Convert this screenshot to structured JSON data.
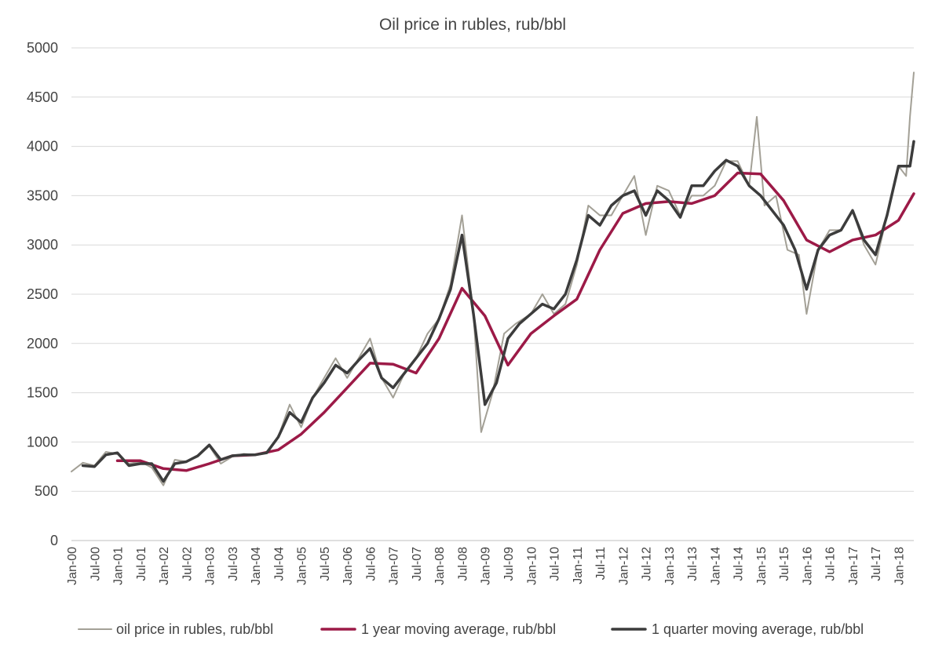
{
  "chart_data": {
    "type": "line",
    "title": "Oil price in rubles, rub/bbl",
    "xlabel": "",
    "ylabel": "",
    "ylim": [
      0,
      5000
    ],
    "yticks": [
      0,
      500,
      1000,
      1500,
      2000,
      2500,
      3000,
      3500,
      4000,
      4500,
      5000
    ],
    "x_tick_labels": [
      "Jan-00",
      "Jul-00",
      "Jan-01",
      "Jul-01",
      "Jan-02",
      "Jul-02",
      "Jan-03",
      "Jul-03",
      "Jan-04",
      "Jul-04",
      "Jan-05",
      "Jul-05",
      "Jan-06",
      "Jul-06",
      "Jan-07",
      "Jul-07",
      "Jan-08",
      "Jul-08",
      "Jan-09",
      "Jul-09",
      "Jan-10",
      "Jul-10",
      "Jan-11",
      "Jul-11",
      "Jan-12",
      "Jul-12",
      "Jan-13",
      "Jul-13",
      "Jan-14",
      "Jul-14",
      "Jan-15",
      "Jul-15",
      "Jan-16",
      "Jul-16",
      "Jan-17",
      "Jul-17",
      "Jan-18"
    ],
    "x_range": [
      "2000-01",
      "2018-05"
    ],
    "grid": "horizontal",
    "legend_position": "bottom",
    "series": [
      {
        "name": "oil price in rubles, rub/bbl",
        "color": "#a3a096",
        "points": [
          [
            "2000-01",
            700
          ],
          [
            "2000-04",
            790
          ],
          [
            "2000-07",
            760
          ],
          [
            "2000-10",
            900
          ],
          [
            "2001-01",
            880
          ],
          [
            "2001-04",
            780
          ],
          [
            "2001-07",
            800
          ],
          [
            "2001-10",
            740
          ],
          [
            "2002-01",
            560
          ],
          [
            "2002-04",
            820
          ],
          [
            "2002-07",
            800
          ],
          [
            "2002-10",
            850
          ],
          [
            "2003-01",
            960
          ],
          [
            "2003-04",
            780
          ],
          [
            "2003-07",
            850
          ],
          [
            "2003-10",
            880
          ],
          [
            "2004-01",
            870
          ],
          [
            "2004-04",
            900
          ],
          [
            "2004-07",
            1050
          ],
          [
            "2004-10",
            1380
          ],
          [
            "2005-01",
            1150
          ],
          [
            "2005-04",
            1450
          ],
          [
            "2005-07",
            1650
          ],
          [
            "2005-10",
            1850
          ],
          [
            "2006-01",
            1650
          ],
          [
            "2006-04",
            1850
          ],
          [
            "2006-07",
            2050
          ],
          [
            "2006-10",
            1650
          ],
          [
            "2007-01",
            1450
          ],
          [
            "2007-04",
            1700
          ],
          [
            "2007-07",
            1850
          ],
          [
            "2007-10",
            2100
          ],
          [
            "2008-01",
            2250
          ],
          [
            "2008-04",
            2600
          ],
          [
            "2008-07",
            3300
          ],
          [
            "2008-10",
            2300
          ],
          [
            "2008-12",
            1100
          ],
          [
            "2009-03",
            1500
          ],
          [
            "2009-06",
            2100
          ],
          [
            "2009-09",
            2200
          ],
          [
            "2010-01",
            2300
          ],
          [
            "2010-04",
            2500
          ],
          [
            "2010-07",
            2300
          ],
          [
            "2010-10",
            2400
          ],
          [
            "2011-01",
            2800
          ],
          [
            "2011-04",
            3400
          ],
          [
            "2011-07",
            3300
          ],
          [
            "2011-10",
            3300
          ],
          [
            "2012-01",
            3500
          ],
          [
            "2012-04",
            3700
          ],
          [
            "2012-07",
            3100
          ],
          [
            "2012-10",
            3600
          ],
          [
            "2013-01",
            3550
          ],
          [
            "2013-04",
            3300
          ],
          [
            "2013-07",
            3500
          ],
          [
            "2013-10",
            3500
          ],
          [
            "2014-01",
            3600
          ],
          [
            "2014-04",
            3850
          ],
          [
            "2014-07",
            3850
          ],
          [
            "2014-10",
            3600
          ],
          [
            "2014-12",
            4300
          ],
          [
            "2015-02",
            3400
          ],
          [
            "2015-05",
            3500
          ],
          [
            "2015-08",
            2950
          ],
          [
            "2015-11",
            2900
          ],
          [
            "2016-01",
            2300
          ],
          [
            "2016-04",
            2950
          ],
          [
            "2016-07",
            3150
          ],
          [
            "2016-10",
            3150
          ],
          [
            "2017-01",
            3350
          ],
          [
            "2017-04",
            3000
          ],
          [
            "2017-07",
            2800
          ],
          [
            "2017-10",
            3300
          ],
          [
            "2018-01",
            3800
          ],
          [
            "2018-03",
            3700
          ],
          [
            "2018-04",
            4300
          ],
          [
            "2018-05",
            4750
          ]
        ]
      },
      {
        "name": "1 year moving average, rub/bbl",
        "color": "#9c1a47",
        "points": [
          [
            "2001-01",
            810
          ],
          [
            "2001-07",
            810
          ],
          [
            "2002-01",
            730
          ],
          [
            "2002-07",
            710
          ],
          [
            "2003-01",
            780
          ],
          [
            "2003-07",
            860
          ],
          [
            "2004-01",
            870
          ],
          [
            "2004-07",
            920
          ],
          [
            "2005-01",
            1080
          ],
          [
            "2005-07",
            1300
          ],
          [
            "2006-01",
            1550
          ],
          [
            "2006-07",
            1800
          ],
          [
            "2007-01",
            1790
          ],
          [
            "2007-07",
            1700
          ],
          [
            "2008-01",
            2050
          ],
          [
            "2008-07",
            2560
          ],
          [
            "2009-01",
            2280
          ],
          [
            "2009-07",
            1780
          ],
          [
            "2010-01",
            2100
          ],
          [
            "2010-07",
            2280
          ],
          [
            "2011-01",
            2450
          ],
          [
            "2011-07",
            2950
          ],
          [
            "2012-01",
            3320
          ],
          [
            "2012-07",
            3420
          ],
          [
            "2013-01",
            3440
          ],
          [
            "2013-07",
            3420
          ],
          [
            "2014-01",
            3500
          ],
          [
            "2014-07",
            3730
          ],
          [
            "2015-01",
            3720
          ],
          [
            "2015-07",
            3450
          ],
          [
            "2016-01",
            3050
          ],
          [
            "2016-07",
            2930
          ],
          [
            "2017-01",
            3050
          ],
          [
            "2017-07",
            3100
          ],
          [
            "2018-01",
            3250
          ],
          [
            "2018-05",
            3520
          ]
        ]
      },
      {
        "name": "1 quarter moving average, rub/bbl",
        "color": "#3c3c3c",
        "points": [
          [
            "2000-04",
            760
          ],
          [
            "2000-07",
            750
          ],
          [
            "2000-10",
            870
          ],
          [
            "2001-01",
            890
          ],
          [
            "2001-04",
            760
          ],
          [
            "2001-07",
            780
          ],
          [
            "2001-10",
            780
          ],
          [
            "2002-01",
            600
          ],
          [
            "2002-04",
            780
          ],
          [
            "2002-07",
            800
          ],
          [
            "2002-10",
            860
          ],
          [
            "2003-01",
            970
          ],
          [
            "2003-04",
            820
          ],
          [
            "2003-07",
            860
          ],
          [
            "2003-10",
            870
          ],
          [
            "2004-01",
            870
          ],
          [
            "2004-04",
            890
          ],
          [
            "2004-07",
            1050
          ],
          [
            "2004-10",
            1300
          ],
          [
            "2005-01",
            1200
          ],
          [
            "2005-04",
            1450
          ],
          [
            "2005-07",
            1600
          ],
          [
            "2005-10",
            1780
          ],
          [
            "2006-01",
            1700
          ],
          [
            "2006-04",
            1830
          ],
          [
            "2006-07",
            1950
          ],
          [
            "2006-10",
            1650
          ],
          [
            "2007-01",
            1550
          ],
          [
            "2007-04",
            1700
          ],
          [
            "2007-07",
            1850
          ],
          [
            "2007-10",
            2000
          ],
          [
            "2008-01",
            2250
          ],
          [
            "2008-04",
            2550
          ],
          [
            "2008-07",
            3100
          ],
          [
            "2008-10",
            2300
          ],
          [
            "2009-01",
            1380
          ],
          [
            "2009-04",
            1600
          ],
          [
            "2009-07",
            2050
          ],
          [
            "2009-10",
            2200
          ],
          [
            "2010-01",
            2300
          ],
          [
            "2010-04",
            2400
          ],
          [
            "2010-07",
            2350
          ],
          [
            "2010-10",
            2500
          ],
          [
            "2011-01",
            2850
          ],
          [
            "2011-04",
            3300
          ],
          [
            "2011-07",
            3200
          ],
          [
            "2011-10",
            3400
          ],
          [
            "2012-01",
            3500
          ],
          [
            "2012-04",
            3550
          ],
          [
            "2012-07",
            3300
          ],
          [
            "2012-10",
            3550
          ],
          [
            "2013-01",
            3450
          ],
          [
            "2013-04",
            3280
          ],
          [
            "2013-07",
            3600
          ],
          [
            "2013-10",
            3600
          ],
          [
            "2014-01",
            3750
          ],
          [
            "2014-04",
            3860
          ],
          [
            "2014-07",
            3800
          ],
          [
            "2014-10",
            3600
          ],
          [
            "2015-01",
            3500
          ],
          [
            "2015-04",
            3350
          ],
          [
            "2015-07",
            3200
          ],
          [
            "2015-10",
            2950
          ],
          [
            "2016-01",
            2550
          ],
          [
            "2016-04",
            2950
          ],
          [
            "2016-07",
            3100
          ],
          [
            "2016-10",
            3150
          ],
          [
            "2017-01",
            3350
          ],
          [
            "2017-04",
            3050
          ],
          [
            "2017-07",
            2900
          ],
          [
            "2017-10",
            3300
          ],
          [
            "2018-01",
            3800
          ],
          [
            "2018-04",
            3800
          ],
          [
            "2018-05",
            4050
          ]
        ]
      }
    ]
  }
}
